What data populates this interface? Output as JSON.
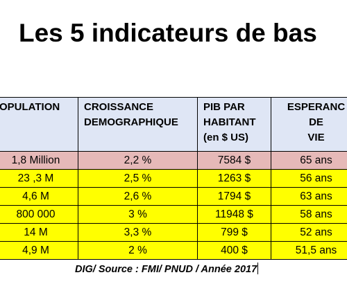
{
  "title": "Les 5 indicateurs de bas",
  "table": {
    "headers": [
      "OPULATION",
      "CROISSANCE\nDEMOGRAPHIQUE",
      "PIB PAR\nHABITANT\n(en $ US)",
      "ESPERANC\nDE\nVIE"
    ],
    "rows": [
      [
        "1,8 Million",
        "2,2 %",
        "7584 $",
        "65 ans"
      ],
      [
        "23 ,3 M",
        "2,5 %",
        "1263 $",
        "56 ans"
      ],
      [
        "4,6 M",
        "2,6 %",
        "1794 $",
        "63 ans"
      ],
      [
        "800 000",
        "3 %",
        "11948 $",
        "58 ans"
      ],
      [
        "14 M",
        "3,3 %",
        "799 $",
        "52 ans"
      ],
      [
        "4,9 M",
        "2 %",
        "400 $",
        "51,5 ans"
      ]
    ],
    "row_colors": [
      "#e6b9b8",
      "#ffff00",
      "#ffff00",
      "#ffff00",
      "#ffff00",
      "#ffff00"
    ],
    "header_color": "#dfe6f5"
  },
  "source": "DIG/ Source : FMI/ PNUD / Année 2017"
}
